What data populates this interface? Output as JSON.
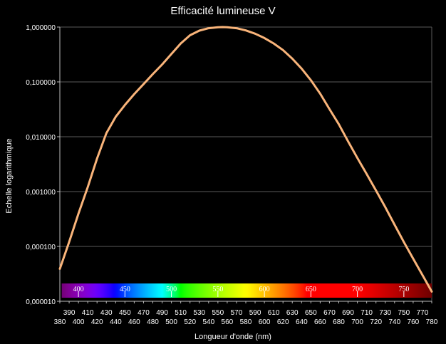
{
  "chart_data": {
    "type": "line",
    "title": "Efficacité lumineuse V",
    "xlabel": "Longueur d'onde (nm)",
    "ylabel": "Echelle logarithmique",
    "yscale": "log",
    "xlim": [
      380,
      780
    ],
    "ylim": [
      1e-05,
      1
    ],
    "grid": true,
    "legend": "none",
    "y_ticks": [
      "0,000010",
      "0,000100",
      "0,001000",
      "0,010000",
      "0,100000",
      "1,000000"
    ],
    "x_ticks_top": [
      "390",
      "410",
      "430",
      "450",
      "470",
      "490",
      "510",
      "530",
      "550",
      "570",
      "590",
      "610",
      "630",
      "650",
      "670",
      "690",
      "710",
      "730",
      "750",
      "770"
    ],
    "x_ticks_bottom": [
      "380",
      "400",
      "420",
      "440",
      "460",
      "480",
      "500",
      "520",
      "540",
      "560",
      "580",
      "600",
      "620",
      "640",
      "660",
      "680",
      "700",
      "720",
      "740",
      "760",
      "780"
    ],
    "spectrum_labels": [
      "400",
      "450",
      "500",
      "550",
      "600",
      "650",
      "700",
      "750"
    ],
    "series": [
      {
        "x": [
          380,
          390,
          400,
          410,
          420,
          430,
          440,
          450,
          460,
          470,
          480,
          490,
          500,
          510,
          520,
          530,
          540,
          550,
          555,
          560,
          570,
          580,
          590,
          600,
          610,
          620,
          630,
          640,
          650,
          660,
          670,
          680,
          690,
          700,
          710,
          720,
          730,
          740,
          750,
          760,
          770,
          780
        ],
        "values": [
          3.9e-05,
          0.00012,
          0.000396,
          0.00121,
          0.004,
          0.0116,
          0.023,
          0.038,
          0.06,
          0.091,
          0.139,
          0.208,
          0.323,
          0.503,
          0.71,
          0.862,
          0.954,
          0.995,
          1.0,
          0.995,
          0.952,
          0.87,
          0.757,
          0.631,
          0.503,
          0.381,
          0.265,
          0.175,
          0.107,
          0.061,
          0.032,
          0.017,
          0.00821,
          0.0041,
          0.00209,
          0.00105,
          0.00052,
          0.000249,
          0.00012,
          6e-05,
          3e-05,
          1.5e-05
        ]
      }
    ],
    "colors": {
      "line": "#f9b47a",
      "grid": "#5a5a5a",
      "background": "#000000"
    }
  }
}
